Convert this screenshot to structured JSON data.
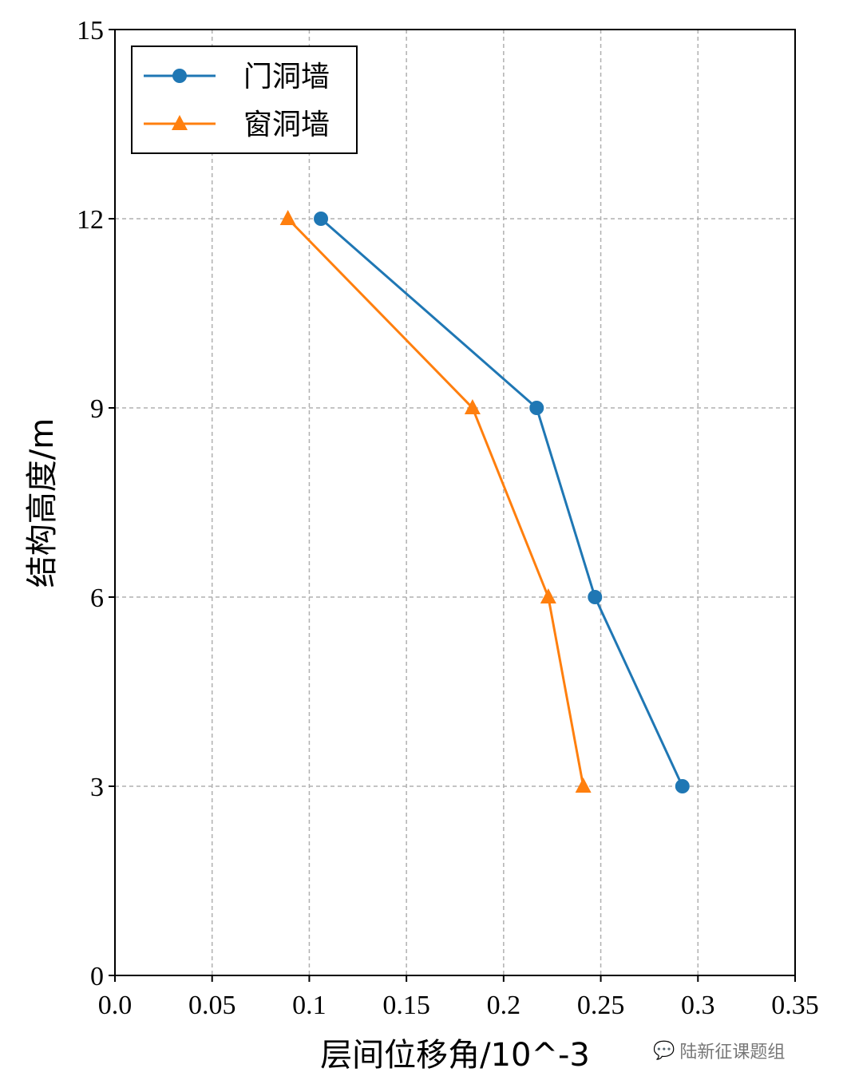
{
  "chart_data": {
    "type": "line",
    "title": "",
    "xlabel": "层间位移角/10^-3",
    "ylabel": "结构高度/m",
    "xlim": [
      0,
      0.35
    ],
    "ylim": [
      0,
      15
    ],
    "xticks": [
      0,
      0.05,
      0.1,
      0.15,
      0.2,
      0.25,
      0.3,
      0.35
    ],
    "xtick_labels": [
      "0.0",
      "0.05",
      "0.1",
      "0.15",
      "0.2",
      "0.25",
      "0.3",
      "0.35"
    ],
    "yticks": [
      0,
      3,
      6,
      9,
      12,
      15
    ],
    "ytick_labels": [
      "0",
      "3",
      "6",
      "9",
      "12",
      "15"
    ],
    "grid": true,
    "legend_position": "top-left",
    "series": [
      {
        "name": "门洞墙",
        "color": "#1f77b4",
        "marker": "circle",
        "x": [
          0.106,
          0.217,
          0.247,
          0.292
        ],
        "y": [
          12,
          9,
          6,
          3
        ]
      },
      {
        "name": "窗洞墙",
        "color": "#ff7f0e",
        "marker": "triangle",
        "x": [
          0.089,
          0.184,
          0.223,
          0.241
        ],
        "y": [
          12,
          9,
          6,
          3
        ]
      }
    ]
  },
  "watermark": {
    "text": "陆新征课题组",
    "icon": "wechat-icon"
  }
}
